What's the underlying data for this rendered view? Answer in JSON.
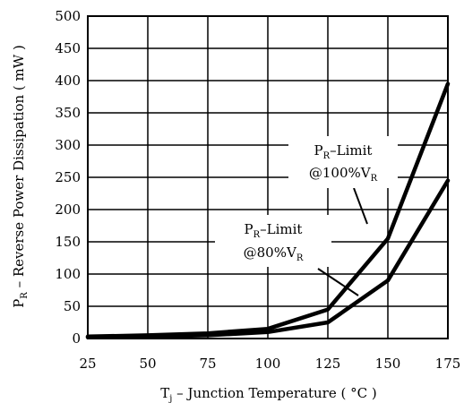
{
  "chart_data": {
    "type": "line",
    "x": [
      25,
      50,
      75,
      100,
      125,
      150,
      175
    ],
    "series": [
      {
        "values": [
          3,
          5,
          8,
          15,
          45,
          155,
          395
        ]
      },
      {
        "values": [
          2,
          3,
          5,
          10,
          25,
          90,
          245
        ]
      }
    ],
    "xlim": [
      25,
      175
    ],
    "ylim": [
      0,
      500
    ],
    "xticks": [
      25,
      50,
      75,
      100,
      125,
      150,
      175
    ],
    "yticks": [
      0,
      50,
      100,
      150,
      200,
      250,
      300,
      350,
      400,
      450,
      500
    ],
    "grid": true,
    "xlabel": {
      "prefix": "T",
      "sub": "j",
      "rest": " – Junction Temperature ( °C )"
    },
    "ylabel": {
      "prefix": "P",
      "sub": "R",
      "rest": " – Reverse Power Dissipation ( mW )"
    },
    "annotations": [
      {
        "line1_prefix": "P",
        "line1_sub": "R",
        "line1_rest": "–Limit",
        "line2_prefix": "@100%V",
        "line2_sub": "R",
        "points_to_series": 0
      },
      {
        "line1_prefix": "P",
        "line1_sub": "R",
        "line1_rest": "–Limit",
        "line2_prefix": "@80%V",
        "line2_sub": "R",
        "points_to_series": 1
      }
    ],
    "colors": {
      "line": "#000000",
      "grid": "#000000",
      "background": "#ffffff"
    }
  }
}
